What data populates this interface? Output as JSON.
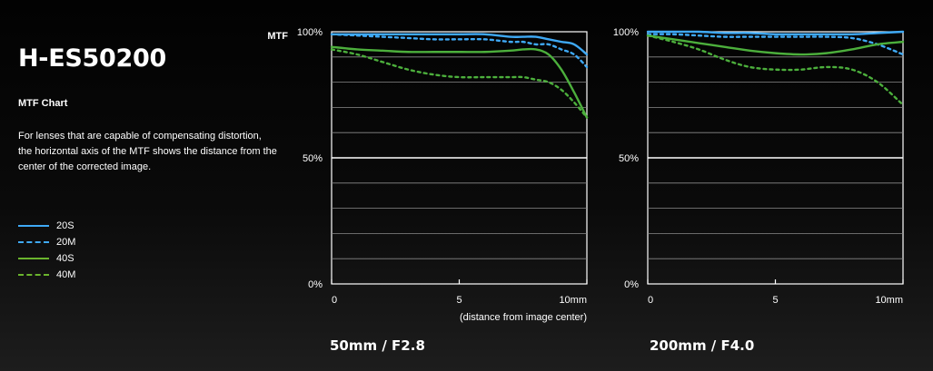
{
  "header": {
    "title": "H-ES50200",
    "subtitle": "MTF Chart",
    "description_lines": [
      "For lenses that are capable of compensating distortion,",
      "the horizontal axis of the MTF shows the distance from the",
      "center of the corrected image."
    ]
  },
  "legend": [
    {
      "label": "20S",
      "color": "#3fa9f5",
      "dashed": false
    },
    {
      "label": "20M",
      "color": "#3fa9f5",
      "dashed": true
    },
    {
      "label": "40S",
      "color": "#6ab42d",
      "dashed": false
    },
    {
      "label": "40M",
      "color": "#6ab42d",
      "dashed": true
    }
  ],
  "chart_data": [
    {
      "type": "line",
      "caption": "50mm / F2.8",
      "ylabel": "MTF",
      "xlabel": "(distance from image center)",
      "x_ticks": [
        "0",
        "5",
        "10mm"
      ],
      "y_ticks": [
        "100%",
        "50%",
        "0%"
      ],
      "xlim": [
        0,
        10
      ],
      "ylim": [
        0,
        100
      ],
      "grid": true,
      "x": [
        0,
        1,
        2,
        3,
        4,
        5,
        6,
        7,
        7.5,
        8,
        8.5,
        9,
        9.5,
        10
      ],
      "series": [
        {
          "name": "20S",
          "color": "#3fa9f5",
          "dashed": false,
          "values": [
            99,
            99,
            99,
            99,
            99,
            99,
            99,
            98,
            98,
            98,
            97,
            96,
            95,
            91
          ]
        },
        {
          "name": "20M",
          "color": "#3fa9f5",
          "dashed": true,
          "values": [
            99,
            98.5,
            98,
            97.5,
            97,
            97,
            97,
            96,
            96,
            95,
            95,
            93,
            91,
            86
          ]
        },
        {
          "name": "40S",
          "color": "#4caf3c",
          "dashed": false,
          "values": [
            94,
            93,
            92.5,
            92,
            92,
            92,
            92,
            92.5,
            93,
            93,
            91,
            85,
            76,
            66
          ]
        },
        {
          "name": "40M",
          "color": "#4caf3c",
          "dashed": true,
          "values": [
            93,
            91,
            88,
            85,
            83,
            82,
            82,
            82,
            82,
            81,
            80,
            77,
            72,
            66
          ]
        }
      ]
    },
    {
      "type": "line",
      "caption": "200mm / F4.0",
      "ylabel": "",
      "xlabel": "",
      "x_ticks": [
        "0",
        "5",
        "10mm"
      ],
      "y_ticks": [
        "100%",
        "50%",
        "0%"
      ],
      "xlim": [
        0,
        10
      ],
      "ylim": [
        0,
        100
      ],
      "grid": true,
      "x": [
        0,
        1,
        2,
        3,
        4,
        5,
        6,
        7,
        8,
        9,
        10
      ],
      "series": [
        {
          "name": "20S",
          "color": "#3fa9f5",
          "dashed": false,
          "values": [
            100,
            100,
            100,
            99.5,
            99.5,
            99,
            99,
            99,
            99,
            99.5,
            100
          ]
        },
        {
          "name": "20M",
          "color": "#3fa9f5",
          "dashed": true,
          "values": [
            99,
            99,
            98.5,
            98,
            98,
            98,
            98,
            98,
            97.5,
            95,
            91
          ]
        },
        {
          "name": "40S",
          "color": "#4caf3c",
          "dashed": false,
          "values": [
            98.5,
            97,
            95.5,
            94,
            92.5,
            91.5,
            91,
            91.5,
            93,
            95,
            96
          ]
        },
        {
          "name": "40M",
          "color": "#4caf3c",
          "dashed": true,
          "values": [
            98.5,
            96,
            93,
            89,
            86,
            85,
            85,
            86,
            85,
            80,
            71
          ]
        }
      ]
    }
  ]
}
